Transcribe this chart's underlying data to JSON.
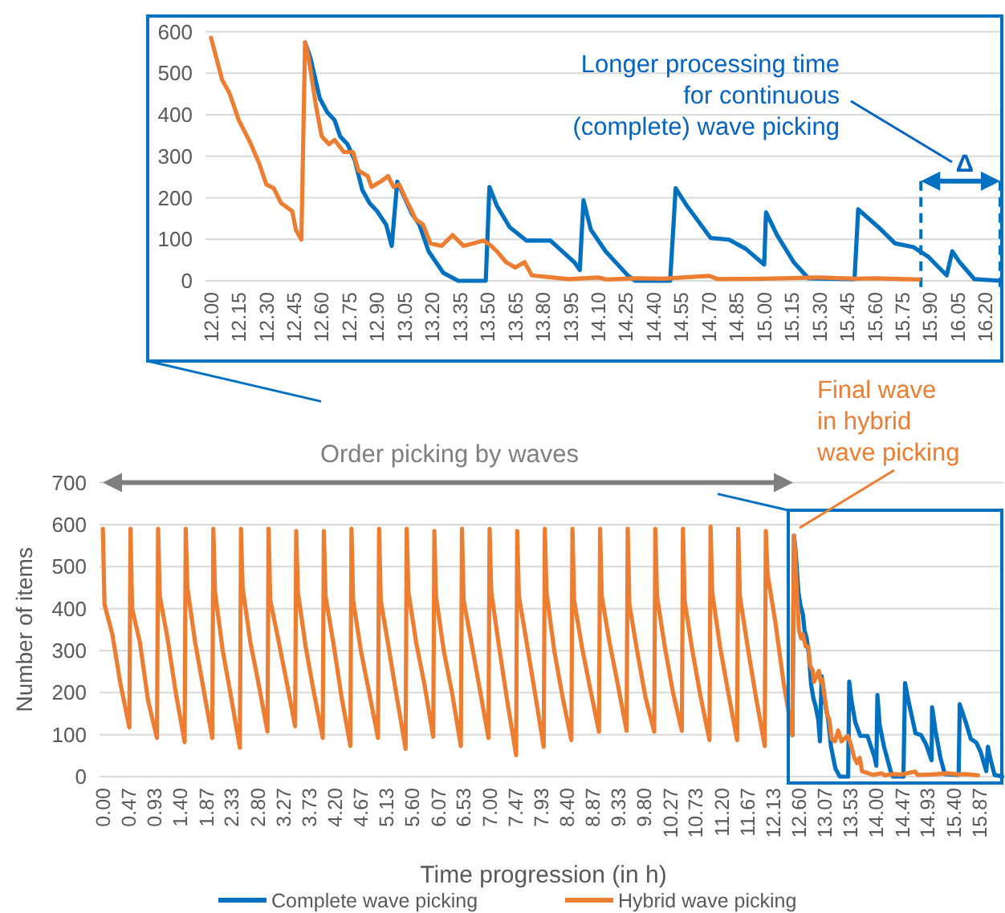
{
  "chart_data": [
    {
      "type": "line",
      "xlim": [
        11.97,
        16.28
      ],
      "ylim": [
        0,
        600
      ],
      "yticks": [
        0,
        100,
        200,
        300,
        400,
        500,
        600
      ],
      "xticks": [
        {
          "value": 12,
          "label": "12.00"
        },
        12.15,
        {
          "value": 12.3,
          "label": "12.30"
        },
        12.45,
        {
          "value": 12.6,
          "label": "12.60"
        },
        12.75,
        {
          "value": 12.9,
          "label": "12.90"
        },
        13.05,
        {
          "value": 13.2,
          "label": "13.20"
        },
        13.35,
        {
          "value": 13.5,
          "label": "13.50"
        },
        13.65,
        {
          "value": 13.8,
          "label": "13.80"
        },
        13.95,
        {
          "value": 14.1,
          "label": "14.10"
        },
        14.25,
        {
          "value": 14.4,
          "label": "14.40"
        },
        14.55,
        {
          "value": 14.7,
          "label": "14.70"
        },
        14.85,
        {
          "value": 15,
          "label": "15.00"
        },
        15.15,
        {
          "value": 15.3,
          "label": "15.30"
        },
        15.45,
        {
          "value": 15.6,
          "label": "15.60"
        },
        15.75,
        {
          "value": 15.9,
          "label": "15.90"
        },
        16.05,
        {
          "value": 16.2,
          "label": "16.20"
        }
      ],
      "grid": "y",
      "legend": false,
      "series": [
        {
          "color": "#0070c0",
          "x": [
            12.51,
            12.54,
            12.59,
            12.63,
            12.67,
            12.7,
            12.74,
            12.78,
            12.82,
            12.86,
            12.9,
            12.95,
            12.98,
            13.01,
            13.05,
            13.09,
            13.13,
            13.18,
            13.22,
            13.26,
            13.34,
            13.49,
            13.51,
            13.55,
            13.62,
            13.71,
            13.84,
            13.89,
            13.97,
            14,
            14.02,
            14.06,
            14.14,
            14.26,
            14.3,
            14.49,
            14.52,
            14.58,
            14.71,
            14.81,
            14.9,
            15,
            15.01,
            15.07,
            15.16,
            15.24,
            15.49,
            15.51,
            15.62,
            15.71,
            15.81,
            15.89,
            15.99,
            16.02,
            16.06,
            16.14,
            16.28
          ],
          "values": [
            574,
            535,
            439,
            406,
            387,
            348,
            329,
            290,
            219,
            187,
            168,
            135,
            84,
            239,
            200,
            161,
            135,
            71,
            45,
            19,
            0,
            0,
            226,
            181,
            129,
            97,
            97,
            77,
            45,
            26,
            194,
            123,
            71,
            13,
            0,
            0,
            223,
            181,
            103,
            99,
            77,
            39,
            165,
            110,
            45,
            6,
            4,
            172,
            129,
            90,
            81,
            58,
            13,
            71,
            45,
            4,
            0
          ]
        },
        {
          "color": "#ed7d31",
          "x": [
            12,
            12.06,
            12.1,
            12.15,
            12.21,
            12.26,
            12.3,
            12.34,
            12.38,
            12.44,
            12.46,
            12.49,
            12.51,
            12.53,
            12.57,
            12.6,
            12.64,
            12.67,
            12.72,
            12.77,
            12.8,
            12.85,
            12.87,
            12.92,
            12.96,
            12.99,
            13.02,
            13.06,
            13.11,
            13.15,
            13.19,
            13.25,
            13.31,
            13.37,
            13.42,
            13.48,
            13.52,
            13.55,
            13.6,
            13.65,
            13.7,
            13.74,
            13.83,
            13.94,
            14.1,
            14.15,
            14.3,
            14.45,
            14.7,
            14.75,
            15,
            15.3,
            15.5,
            15.6,
            15.84
          ],
          "values": [
            585,
            484,
            452,
            387,
            335,
            284,
            232,
            223,
            187,
            168,
            123,
            99,
            574,
            535,
            419,
            348,
            329,
            339,
            310,
            310,
            265,
            252,
            226,
            239,
            252,
            226,
            232,
            194,
            148,
            135,
            90,
            84,
            110,
            84,
            90,
            97,
            84,
            71,
            45,
            32,
            45,
            13,
            9,
            4,
            8,
            3,
            6,
            5,
            12,
            4,
            5,
            8,
            5,
            6,
            3
          ]
        }
      ],
      "ref_lines": [
        {
          "axis": "x",
          "value": 15.85,
          "color": "#0070c0",
          "line_style": "dashed"
        },
        {
          "axis": "x",
          "value": 16.28,
          "color": "#0070c0",
          "line_style": "dashed"
        }
      ],
      "annotations": [
        "Longer processing time\nfor continuous\n(complete) wave picking",
        "Δ"
      ]
    },
    {
      "type": "line",
      "xlabel": "Time progression (in h)",
      "ylabel": "Number of items",
      "xlim": [
        -0.06,
        16.3
      ],
      "ylim": [
        0,
        700
      ],
      "yticks": [
        0,
        100,
        200,
        300,
        400,
        500,
        600,
        700
      ],
      "xticks": [
        {
          "value": 0,
          "label": "0.00"
        },
        0.47,
        0.93,
        {
          "value": 1.4,
          "label": "1.40"
        },
        1.87,
        2.33,
        {
          "value": 2.8,
          "label": "2.80"
        },
        3.27,
        3.73,
        {
          "value": 4.2,
          "label": "4.20"
        },
        4.67,
        5.13,
        {
          "value": 5.6,
          "label": "5.60"
        },
        6.07,
        6.53,
        {
          "value": 7,
          "label": "7.00"
        },
        7.47,
        7.93,
        {
          "value": 8.4,
          "label": "8.40"
        },
        8.87,
        9.33,
        {
          "value": 9.8,
          "label": "9.80"
        },
        10.27,
        10.73,
        {
          "value": 11.2,
          "label": "11.20"
        },
        11.67,
        12.13,
        {
          "value": 12.6,
          "label": "12.60"
        },
        13.07,
        13.53,
        {
          "value": 14,
          "label": "14.00"
        },
        14.47,
        14.93,
        {
          "value": 15.4,
          "label": "15.40"
        },
        15.87
      ],
      "grid": "y",
      "legend": "bottom",
      "series": [
        {
          "name": "Complete wave picking",
          "color": "#0070c0",
          "x": [
            12.48,
            12.51,
            12.54,
            12.59,
            12.63,
            12.67,
            12.7,
            12.74,
            12.78,
            12.82,
            12.86,
            12.9,
            12.95,
            12.98,
            13.01,
            13.05,
            13.09,
            13.13,
            13.18,
            13.22,
            13.26,
            13.34,
            13.49,
            13.51,
            13.55,
            13.62,
            13.71,
            13.84,
            13.89,
            13.97,
            14,
            14.02,
            14.06,
            14.14,
            14.26,
            14.3,
            14.49,
            14.52,
            14.58,
            14.71,
            14.81,
            14.9,
            15,
            15.01,
            15.07,
            15.16,
            15.24,
            15.49,
            15.51,
            15.62,
            15.71,
            15.81,
            15.89,
            15.99,
            16.02,
            16.06,
            16.14,
            16.28
          ],
          "values": [
            99,
            574,
            535,
            439,
            406,
            387,
            348,
            329,
            290,
            219,
            187,
            168,
            135,
            84,
            239,
            200,
            161,
            135,
            71,
            45,
            19,
            0,
            0,
            226,
            181,
            129,
            97,
            97,
            77,
            45,
            26,
            194,
            123,
            71,
            13,
            0,
            0,
            223,
            181,
            103,
            99,
            77,
            39,
            165,
            110,
            45,
            6,
            4,
            172,
            129,
            90,
            81,
            58,
            13,
            71,
            45,
            4,
            0
          ]
        },
        {
          "name": "Hybrid wave picking",
          "color": "#ed7d31",
          "x": [
            0,
            0.03,
            0.17,
            0.32,
            0.48,
            0.5,
            0.53,
            0.67,
            0.82,
            0.98,
            1,
            1.03,
            1.17,
            1.32,
            1.48,
            1.5,
            1.53,
            1.67,
            1.82,
            1.98,
            2,
            2.03,
            2.17,
            2.32,
            2.48,
            2.5,
            2.53,
            2.67,
            2.82,
            2.98,
            3,
            3.03,
            3.17,
            3.32,
            3.48,
            3.5,
            3.53,
            3.67,
            3.82,
            3.98,
            4,
            4.03,
            4.17,
            4.32,
            4.48,
            4.5,
            4.53,
            4.67,
            4.82,
            4.98,
            5,
            5.03,
            5.17,
            5.32,
            5.48,
            5.5,
            5.53,
            5.67,
            5.82,
            5.98,
            6,
            6.03,
            6.17,
            6.32,
            6.48,
            6.5,
            6.53,
            6.67,
            6.82,
            6.98,
            7,
            7.03,
            7.17,
            7.32,
            7.48,
            7.5,
            7.53,
            7.67,
            7.82,
            7.98,
            8,
            8.03,
            8.17,
            8.32,
            8.48,
            8.5,
            8.53,
            8.67,
            8.82,
            8.98,
            9,
            9.03,
            9.17,
            9.32,
            9.48,
            9.5,
            9.53,
            9.67,
            9.82,
            9.98,
            10,
            10.03,
            10.17,
            10.32,
            10.48,
            10.5,
            10.53,
            10.67,
            10.82,
            10.98,
            11,
            11.03,
            11.17,
            11.32,
            11.48,
            11.5,
            11.53,
            11.67,
            11.82,
            11.98,
            12,
            12.03,
            12.17,
            12.32,
            12.48,
            12.51,
            12.53,
            12.57,
            12.6,
            12.64,
            12.67,
            12.72,
            12.77,
            12.8,
            12.85,
            12.87,
            12.92,
            12.96,
            12.99,
            13.02,
            13.06,
            13.11,
            13.15,
            13.19,
            13.25,
            13.31,
            13.37,
            13.42,
            13.48,
            13.52,
            13.55,
            13.6,
            13.65,
            13.7,
            13.74,
            13.83,
            13.94,
            14.1,
            14.15,
            14.3,
            14.45,
            14.7,
            14.75,
            15,
            15.3,
            15.5,
            15.6,
            15.84
          ],
          "values": [
            590,
            410,
            340,
            220,
            117,
            590,
            400,
            320,
            180,
            92,
            590,
            430,
            330,
            200,
            82,
            590,
            450,
            320,
            210,
            92,
            590,
            440,
            300,
            190,
            69,
            590,
            450,
            320,
            220,
            107,
            590,
            420,
            330,
            230,
            120,
            585,
            440,
            310,
            200,
            92,
            585,
            430,
            320,
            190,
            73,
            590,
            420,
            300,
            200,
            92,
            590,
            420,
            310,
            190,
            66,
            590,
            440,
            320,
            220,
            95,
            585,
            430,
            300,
            200,
            73,
            590,
            420,
            320,
            210,
            92,
            590,
            440,
            310,
            180,
            51,
            585,
            430,
            320,
            200,
            71,
            590,
            440,
            300,
            190,
            87,
            590,
            420,
            310,
            210,
            107,
            590,
            430,
            320,
            220,
            109,
            590,
            410,
            300,
            190,
            107,
            590,
            430,
            310,
            200,
            109,
            590,
            420,
            300,
            190,
            87,
            595,
            440,
            310,
            200,
            87,
            590,
            430,
            310,
            190,
            73,
            585,
            484,
            370,
            225,
            99,
            574,
            535,
            419,
            348,
            329,
            339,
            310,
            310,
            265,
            252,
            226,
            239,
            252,
            226,
            232,
            194,
            148,
            135,
            90,
            84,
            110,
            84,
            90,
            97,
            84,
            71,
            45,
            32,
            45,
            13,
            9,
            4,
            8,
            3,
            6,
            5,
            12,
            4,
            5,
            8,
            5,
            6,
            3
          ]
        }
      ],
      "annotations": [
        "Order picking by waves",
        "Final wave\nin hybrid\nwave picking"
      ]
    }
  ]
}
